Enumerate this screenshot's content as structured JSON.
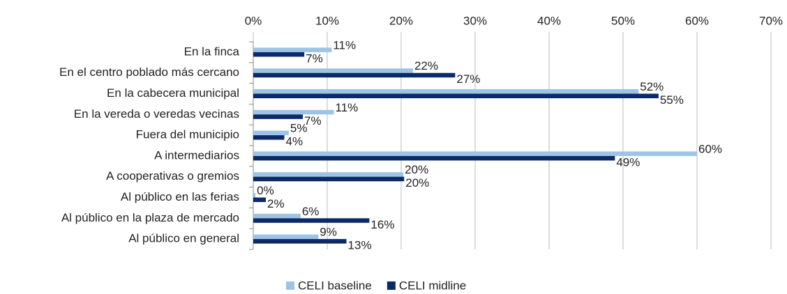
{
  "chart_data": {
    "type": "hbar",
    "categories": [
      "En la finca",
      "En el centro poblado más cercano",
      "En la cabecera municipal",
      "En la vereda o veredas vecinas",
      "Fuera del municipio",
      "A intermediarios",
      "A cooperativas o gremios",
      "Al público en las ferias",
      "Al público en la plaza de mercado",
      "Al público en general"
    ],
    "series": [
      {
        "name": "CELI baseline",
        "color": "#9dc3e6",
        "values": [
          10.6,
          21.6,
          52.1,
          10.9,
          4.8,
          60.0,
          20.3,
          0.3,
          6.4,
          8.8
        ],
        "value_labels": [
          "11%",
          "22%",
          "52%",
          "11%",
          "5%",
          "60%",
          "20%",
          "0%",
          "6%",
          "9%"
        ]
      },
      {
        "name": "CELI midline",
        "color": "#0b2a66",
        "values": [
          6.9,
          27.3,
          54.8,
          6.7,
          4.2,
          48.9,
          20.4,
          1.7,
          15.7,
          12.6
        ],
        "value_labels": [
          "7%",
          "27%",
          "55%",
          "7%",
          "4%",
          "49%",
          "20%",
          "2%",
          "16%",
          "13%"
        ]
      }
    ],
    "xlim": [
      0,
      70
    ],
    "xticks": [
      {
        "value": 0,
        "label": "0%"
      },
      {
        "value": 10,
        "label": "10%"
      },
      {
        "value": 20,
        "label": "20%"
      },
      {
        "value": 30,
        "label": "30%"
      },
      {
        "value": 40,
        "label": "40%"
      },
      {
        "value": 50,
        "label": "50%"
      },
      {
        "value": 60,
        "label": "60%"
      },
      {
        "value": 70,
        "label": "70%"
      }
    ],
    "grid": true,
    "legend": "bottom"
  }
}
